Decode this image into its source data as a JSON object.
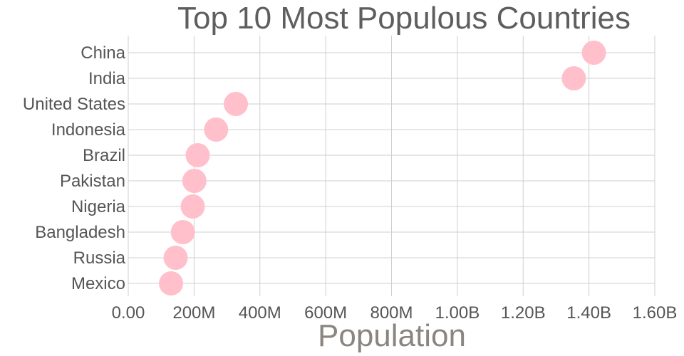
{
  "chart_data": {
    "type": "scatter",
    "title": "Top 10 Most Populous Countries",
    "xlabel": "Population",
    "ylabel": "",
    "xlim": [
      0,
      1600000000
    ],
    "x_ticks": [
      {
        "value": 0,
        "label": "0.00"
      },
      {
        "value": 200000000,
        "label": "200M"
      },
      {
        "value": 400000000,
        "label": "400M"
      },
      {
        "value": 600000000,
        "label": "600M"
      },
      {
        "value": 800000000,
        "label": "800M"
      },
      {
        "value": 1000000000,
        "label": "1.00B"
      },
      {
        "value": 1200000000,
        "label": "1.20B"
      },
      {
        "value": 1400000000,
        "label": "1.40B"
      },
      {
        "value": 1600000000,
        "label": "1.60B"
      }
    ],
    "categories": [
      "China",
      "India",
      "United States",
      "Indonesia",
      "Brazil",
      "Pakistan",
      "Nigeria",
      "Bangladesh",
      "Russia",
      "Mexico"
    ],
    "values": [
      1415000000,
      1354000000,
      327000000,
      267000000,
      211000000,
      201000000,
      196000000,
      166000000,
      144000000,
      130000000
    ],
    "marker_color": "#ffc0cb",
    "grid": true
  }
}
